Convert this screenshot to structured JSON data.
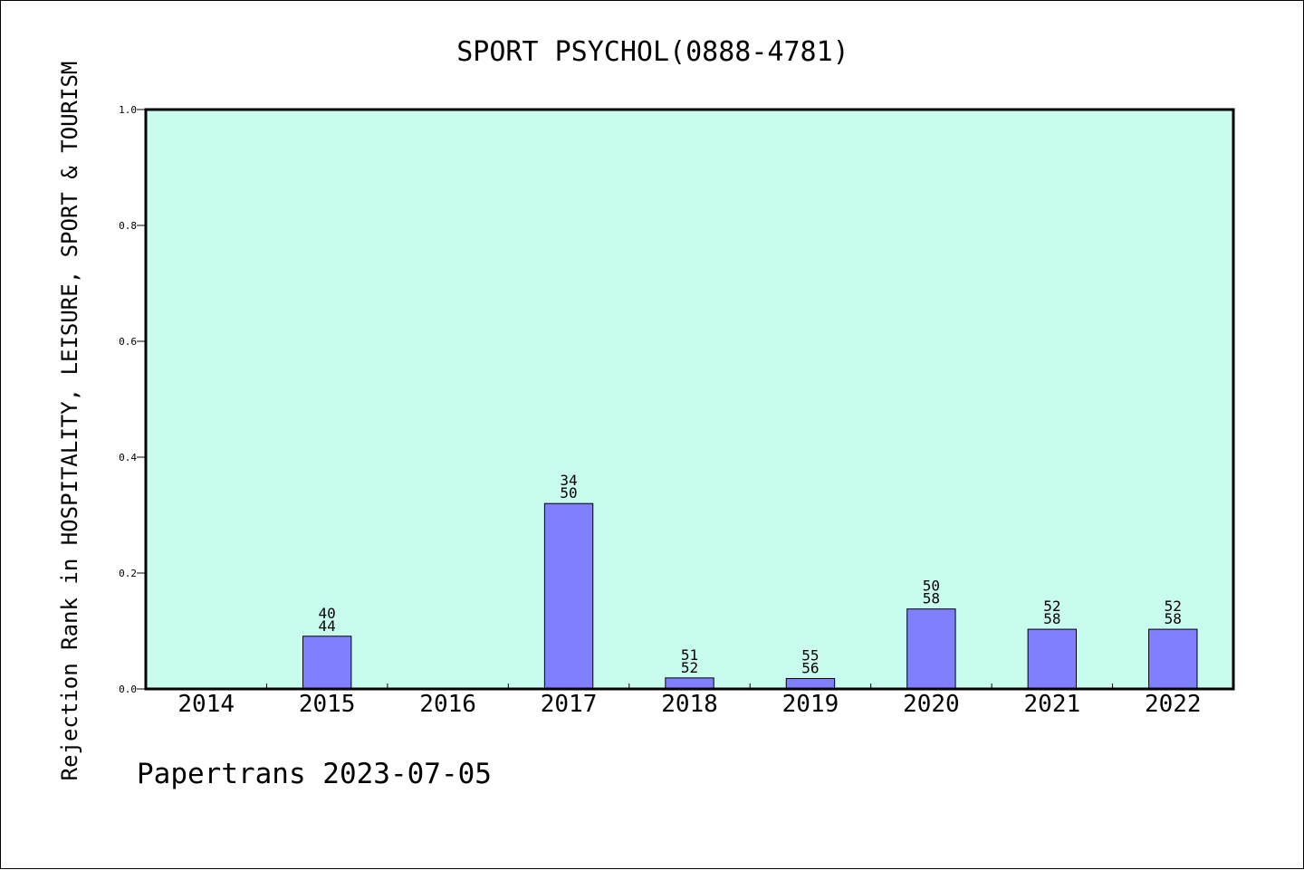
{
  "chart_data": {
    "type": "bar",
    "title": "SPORT PSYCHOL(0888-4781)",
    "xlabel": "",
    "ylabel": "Rejection Rank in HOSPITALITY, LEISURE, SPORT & TOURISM",
    "ylim": [
      0,
      1.0
    ],
    "yticks": [
      "0.0",
      "0.2",
      "0.4",
      "0.6",
      "0.8",
      "1.0"
    ],
    "grid": false,
    "categories": [
      "2014",
      "2015",
      "2016",
      "2017",
      "2018",
      "2019",
      "2020",
      "2021",
      "2022"
    ],
    "values": [
      0,
      0.091,
      0,
      0.32,
      0.019,
      0.018,
      0.138,
      0.103,
      0.103
    ],
    "labels": [
      null,
      {
        "rank": "40",
        "total": "44"
      },
      null,
      {
        "rank": "34",
        "total": "50"
      },
      {
        "rank": "51",
        "total": "52"
      },
      {
        "rank": "55",
        "total": "56"
      },
      {
        "rank": "50",
        "total": "58"
      },
      {
        "rank": "52",
        "total": "58"
      },
      {
        "rank": "52",
        "total": "58"
      }
    ],
    "colors": {
      "plot_background": "#c8fcee",
      "bar_fill": "#8080ff",
      "bar_stroke": "#000000"
    }
  },
  "footer": "Papertrans 2023-07-05"
}
